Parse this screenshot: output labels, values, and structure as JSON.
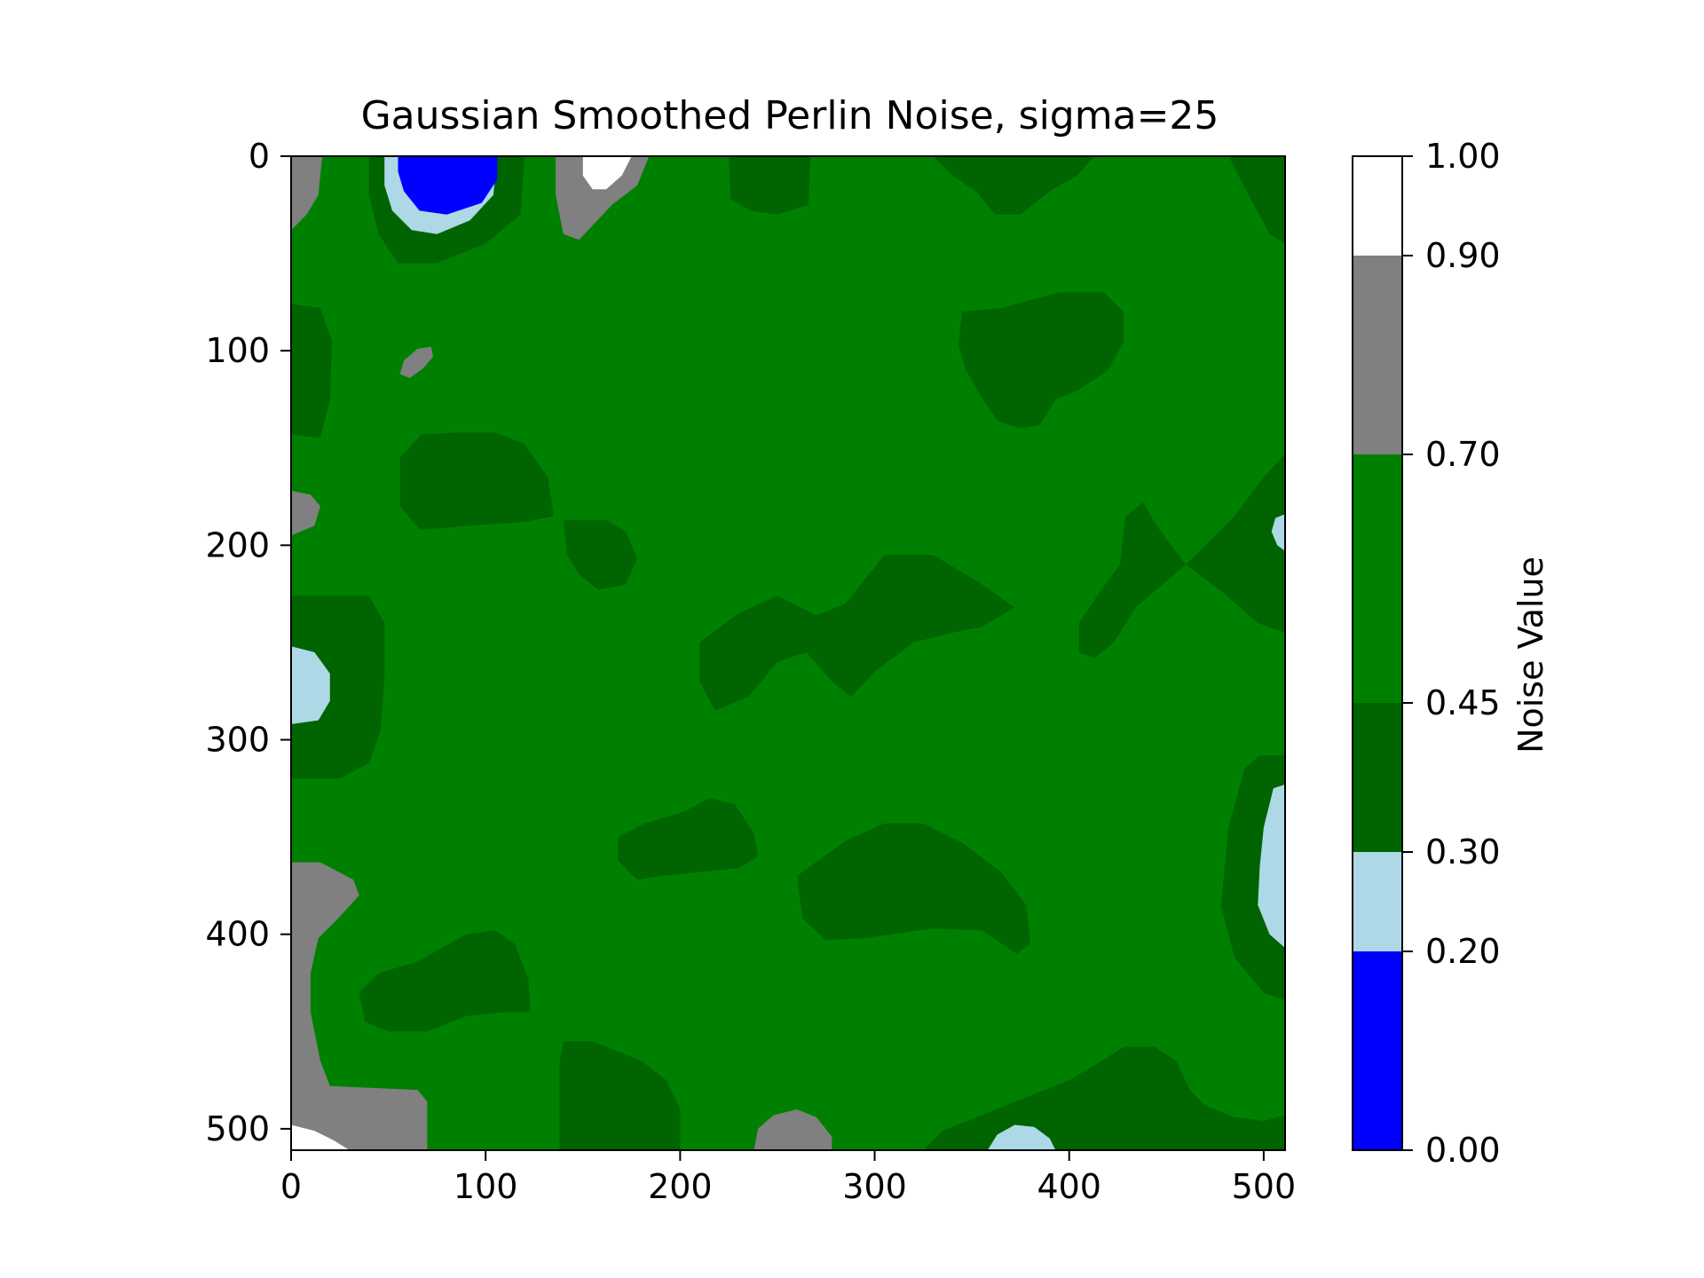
{
  "chart_data": {
    "type": "heatmap",
    "subtype": "filled-contour",
    "title": "Gaussian Smoothed Perlin Noise, sigma=25",
    "xlabel": "",
    "ylabel": "",
    "xlim": [
      0,
      511
    ],
    "ylim": [
      511,
      0
    ],
    "x_ticks": [
      0,
      100,
      200,
      300,
      400,
      500
    ],
    "y_ticks": [
      0,
      100,
      200,
      300,
      400,
      500
    ],
    "x_tick_labels": [
      "0",
      "100",
      "200",
      "300",
      "400",
      "500"
    ],
    "y_tick_labels": [
      "0",
      "100",
      "200",
      "300",
      "400",
      "500"
    ],
    "grid": false,
    "legend": "none",
    "background_level": "0.45-0.70",
    "levels": [
      0.0,
      0.2,
      0.3,
      0.45,
      0.7,
      0.9,
      1.0
    ],
    "level_colors": [
      "#0000ff",
      "#add8e6",
      "#006400",
      "#008000",
      "#808080",
      "#ffffff"
    ],
    "colorbar": {
      "label": "Noise Value",
      "position": "right",
      "ticks": [
        0.0,
        0.2,
        0.3,
        0.45,
        0.7,
        0.9,
        1.0
      ],
      "tick_labels": [
        "0.00",
        "0.20",
        "0.30",
        "0.45",
        "0.70",
        "0.90",
        "1.00"
      ]
    },
    "regions": [
      {
        "level": "0.30-0.45",
        "points": [
          [
            40,
            0
          ],
          [
            120,
            0
          ],
          [
            118,
            30
          ],
          [
            100,
            45
          ],
          [
            75,
            55
          ],
          [
            55,
            55
          ],
          [
            45,
            40
          ],
          [
            40,
            20
          ]
        ]
      },
      {
        "level": "0.20-0.30",
        "points": [
          [
            48,
            0
          ],
          [
            106,
            0
          ],
          [
            104,
            20
          ],
          [
            92,
            33
          ],
          [
            75,
            40
          ],
          [
            62,
            38
          ],
          [
            52,
            28
          ],
          [
            48,
            15
          ]
        ]
      },
      {
        "level": "0.00-0.20",
        "points": [
          [
            55,
            0
          ],
          [
            106,
            0
          ],
          [
            106,
            12
          ],
          [
            98,
            24
          ],
          [
            80,
            30
          ],
          [
            66,
            28
          ],
          [
            58,
            18
          ],
          [
            55,
            8
          ]
        ]
      },
      {
        "level": "0.70-0.90",
        "points": [
          [
            0,
            0
          ],
          [
            16,
            0
          ],
          [
            14,
            20
          ],
          [
            8,
            30
          ],
          [
            0,
            38
          ]
        ]
      },
      {
        "level": "0.70-0.90",
        "points": [
          [
            136,
            0
          ],
          [
            184,
            0
          ],
          [
            178,
            15
          ],
          [
            165,
            25
          ],
          [
            148,
            43
          ],
          [
            140,
            40
          ],
          [
            136,
            20
          ]
        ]
      },
      {
        "level": "0.90-1.00",
        "points": [
          [
            150,
            0
          ],
          [
            175,
            0
          ],
          [
            170,
            10
          ],
          [
            162,
            17
          ],
          [
            155,
            17
          ],
          [
            150,
            10
          ]
        ]
      },
      {
        "level": "0.30-0.45",
        "points": [
          [
            225,
            0
          ],
          [
            267,
            0
          ],
          [
            266,
            25
          ],
          [
            250,
            30
          ],
          [
            236,
            28
          ],
          [
            226,
            22
          ]
        ]
      },
      {
        "level": "0.30-0.45",
        "points": [
          [
            330,
            0
          ],
          [
            413,
            0
          ],
          [
            404,
            10
          ],
          [
            390,
            18
          ],
          [
            375,
            30
          ],
          [
            362,
            30
          ],
          [
            352,
            18
          ],
          [
            340,
            10
          ]
        ]
      },
      {
        "level": "0.30-0.45",
        "points": [
          [
            482,
            0
          ],
          [
            511,
            0
          ],
          [
            511,
            45
          ],
          [
            503,
            40
          ],
          [
            495,
            25
          ],
          [
            487,
            10
          ]
        ]
      },
      {
        "level": "0.30-0.45",
        "points": [
          [
            0,
            76
          ],
          [
            15,
            78
          ],
          [
            21,
            95
          ],
          [
            20,
            125
          ],
          [
            15,
            145
          ],
          [
            0,
            143
          ]
        ]
      },
      {
        "level": "0.70-0.90",
        "points": [
          [
            58,
            105
          ],
          [
            65,
            99
          ],
          [
            72,
            98
          ],
          [
            73,
            103
          ],
          [
            68,
            109
          ],
          [
            61,
            114
          ],
          [
            56,
            112
          ]
        ]
      },
      {
        "level": "0.30-0.45",
        "points": [
          [
            345,
            80
          ],
          [
            365,
            78
          ],
          [
            395,
            70
          ],
          [
            418,
            70
          ],
          [
            428,
            80
          ],
          [
            428,
            95
          ],
          [
            420,
            110
          ],
          [
            405,
            120
          ],
          [
            393,
            125
          ],
          [
            385,
            138
          ],
          [
            375,
            140
          ],
          [
            363,
            136
          ],
          [
            355,
            124
          ],
          [
            347,
            110
          ],
          [
            343,
            97
          ]
        ]
      },
      {
        "level": "0.30-0.45",
        "points": [
          [
            56,
            155
          ],
          [
            67,
            143
          ],
          [
            85,
            142
          ],
          [
            105,
            142
          ],
          [
            120,
            148
          ],
          [
            132,
            165
          ],
          [
            135,
            185
          ],
          [
            120,
            188
          ],
          [
            92,
            190
          ],
          [
            66,
            192
          ],
          [
            56,
            180
          ]
        ]
      },
      {
        "level": "0.70-0.90",
        "points": [
          [
            0,
            172
          ],
          [
            10,
            174
          ],
          [
            15,
            180
          ],
          [
            12,
            190
          ],
          [
            0,
            195
          ]
        ]
      },
      {
        "level": "0.30-0.45",
        "points": [
          [
            140,
            187
          ],
          [
            162,
            187
          ],
          [
            172,
            193
          ],
          [
            178,
            207
          ],
          [
            172,
            220
          ],
          [
            158,
            223
          ],
          [
            148,
            215
          ],
          [
            142,
            205
          ]
        ]
      },
      {
        "level": "0.30-0.45",
        "points": [
          [
            210,
            250
          ],
          [
            230,
            235
          ],
          [
            250,
            226
          ],
          [
            270,
            236
          ],
          [
            285,
            230
          ],
          [
            305,
            205
          ],
          [
            330,
            205
          ],
          [
            355,
            220
          ],
          [
            372,
            232
          ],
          [
            355,
            242
          ],
          [
            340,
            245
          ],
          [
            320,
            250
          ],
          [
            300,
            265
          ],
          [
            288,
            278
          ],
          [
            278,
            270
          ],
          [
            265,
            255
          ],
          [
            250,
            260
          ],
          [
            235,
            278
          ],
          [
            218,
            285
          ],
          [
            210,
            270
          ]
        ]
      },
      {
        "level": "0.30-0.45",
        "points": [
          [
            511,
            153
          ],
          [
            500,
            165
          ],
          [
            485,
            185
          ],
          [
            470,
            200
          ],
          [
            460,
            210
          ],
          [
            445,
            190
          ],
          [
            438,
            178
          ],
          [
            429,
            185
          ],
          [
            426,
            210
          ],
          [
            415,
            225
          ],
          [
            405,
            240
          ],
          [
            405,
            255
          ],
          [
            413,
            258
          ],
          [
            423,
            250
          ],
          [
            434,
            232
          ],
          [
            460,
            210
          ],
          [
            480,
            225
          ],
          [
            497,
            240
          ],
          [
            511,
            245
          ]
        ]
      },
      {
        "level": "0.20-0.30",
        "points": [
          [
            511,
            184
          ],
          [
            506,
            186
          ],
          [
            504,
            193
          ],
          [
            507,
            200
          ],
          [
            511,
            203
          ]
        ]
      },
      {
        "level": "0.30-0.45",
        "points": [
          [
            0,
            226
          ],
          [
            40,
            226
          ],
          [
            48,
            240
          ],
          [
            48,
            268
          ],
          [
            46,
            295
          ],
          [
            40,
            312
          ],
          [
            25,
            320
          ],
          [
            0,
            320
          ]
        ]
      },
      {
        "level": "0.20-0.30",
        "points": [
          [
            0,
            252
          ],
          [
            12,
            255
          ],
          [
            20,
            266
          ],
          [
            20,
            280
          ],
          [
            14,
            290
          ],
          [
            0,
            292
          ]
        ]
      },
      {
        "level": "0.30-0.45",
        "points": [
          [
            168,
            350
          ],
          [
            182,
            343
          ],
          [
            202,
            337
          ],
          [
            215,
            330
          ],
          [
            228,
            333
          ],
          [
            238,
            348
          ],
          [
            240,
            360
          ],
          [
            230,
            366
          ],
          [
            210,
            368
          ],
          [
            190,
            370
          ],
          [
            178,
            372
          ],
          [
            168,
            362
          ]
        ]
      },
      {
        "level": "0.30-0.45",
        "points": [
          [
            260,
            370
          ],
          [
            285,
            352
          ],
          [
            305,
            343
          ],
          [
            325,
            343
          ],
          [
            345,
            353
          ],
          [
            365,
            368
          ],
          [
            378,
            385
          ],
          [
            380,
            405
          ],
          [
            373,
            410
          ],
          [
            355,
            398
          ],
          [
            330,
            397
          ],
          [
            295,
            402
          ],
          [
            275,
            403
          ],
          [
            263,
            392
          ]
        ]
      },
      {
        "level": "0.30-0.45",
        "points": [
          [
            511,
            308
          ],
          [
            498,
            308
          ],
          [
            490,
            315
          ],
          [
            482,
            345
          ],
          [
            478,
            385
          ],
          [
            485,
            412
          ],
          [
            500,
            430
          ],
          [
            511,
            434
          ]
        ]
      },
      {
        "level": "0.20-0.30",
        "points": [
          [
            511,
            323
          ],
          [
            505,
            325
          ],
          [
            500,
            345
          ],
          [
            498,
            365
          ],
          [
            497,
            385
          ],
          [
            503,
            400
          ],
          [
            511,
            407
          ]
        ]
      },
      {
        "level": "0.70-0.90",
        "points": [
          [
            0,
            363
          ],
          [
            15,
            363
          ],
          [
            32,
            372
          ],
          [
            35,
            380
          ],
          [
            24,
            392
          ],
          [
            14,
            402
          ],
          [
            10,
            420
          ],
          [
            10,
            440
          ],
          [
            15,
            465
          ],
          [
            20,
            478
          ],
          [
            65,
            480
          ],
          [
            70,
            486
          ],
          [
            70,
            511
          ],
          [
            0,
            511
          ]
        ]
      },
      {
        "level": "0.90-1.00",
        "points": [
          [
            0,
            498
          ],
          [
            12,
            501
          ],
          [
            22,
            506
          ],
          [
            30,
            511
          ],
          [
            0,
            511
          ]
        ]
      },
      {
        "level": "0.30-0.45",
        "points": [
          [
            35,
            430
          ],
          [
            45,
            420
          ],
          [
            65,
            414
          ],
          [
            90,
            400
          ],
          [
            105,
            398
          ],
          [
            115,
            405
          ],
          [
            122,
            423
          ],
          [
            123,
            440
          ],
          [
            112,
            440
          ],
          [
            90,
            442
          ],
          [
            70,
            450
          ],
          [
            50,
            450
          ],
          [
            38,
            445
          ]
        ]
      },
      {
        "level": "0.30-0.45",
        "points": [
          [
            138,
            465
          ],
          [
            140,
            455
          ],
          [
            155,
            455
          ],
          [
            180,
            465
          ],
          [
            193,
            475
          ],
          [
            200,
            490
          ],
          [
            200,
            511
          ],
          [
            138,
            511
          ]
        ]
      },
      {
        "level": "0.70-0.90",
        "points": [
          [
            238,
            511
          ],
          [
            240,
            500
          ],
          [
            248,
            493
          ],
          [
            260,
            490
          ],
          [
            270,
            494
          ],
          [
            278,
            504
          ],
          [
            278,
            511
          ]
        ]
      },
      {
        "level": "0.30-0.45",
        "points": [
          [
            325,
            511
          ],
          [
            335,
            501
          ],
          [
            360,
            491
          ],
          [
            385,
            481
          ],
          [
            400,
            475
          ],
          [
            412,
            468
          ],
          [
            428,
            458
          ],
          [
            444,
            458
          ],
          [
            455,
            465
          ],
          [
            462,
            480
          ],
          [
            470,
            488
          ],
          [
            485,
            494
          ],
          [
            500,
            496
          ],
          [
            511,
            493
          ],
          [
            511,
            511
          ]
        ]
      },
      {
        "level": "0.20-0.30",
        "points": [
          [
            358,
            511
          ],
          [
            363,
            503
          ],
          [
            372,
            498
          ],
          [
            382,
            499
          ],
          [
            390,
            505
          ],
          [
            393,
            511
          ]
        ]
      }
    ]
  }
}
